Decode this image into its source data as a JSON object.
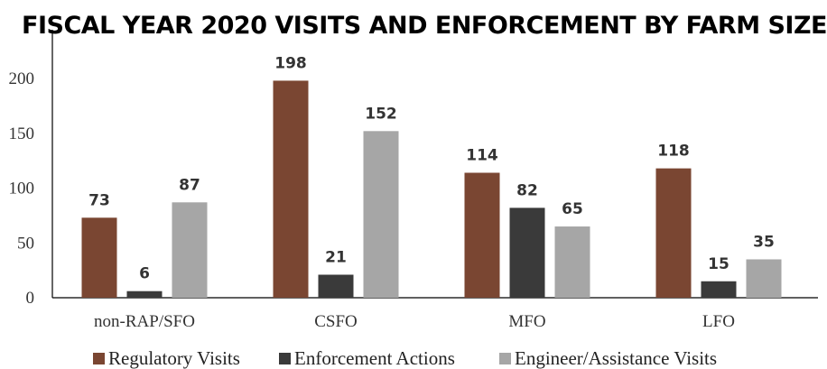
{
  "chart_data": {
    "type": "bar",
    "title": "FISCAL YEAR 2020 VISITS AND ENFORCEMENT BY FARM SIZE",
    "categories": [
      "non-RAP/SFO",
      "CSFO",
      "MFO",
      "LFO"
    ],
    "series": [
      {
        "name": "Regulatory Visits",
        "values": [
          73,
          198,
          114,
          118
        ],
        "color": "#7a4632"
      },
      {
        "name": "Enforcement Actions",
        "values": [
          6,
          21,
          82,
          15
        ],
        "color": "#3a3a3a"
      },
      {
        "name": "Engineer/Assistance Visits",
        "values": [
          87,
          152,
          65,
          35
        ],
        "color": "#a6a6a6"
      }
    ],
    "ylim": [
      0,
      200
    ],
    "yticks": [
      0,
      50,
      100,
      150,
      200
    ],
    "grid": false,
    "legend": "bottom"
  }
}
